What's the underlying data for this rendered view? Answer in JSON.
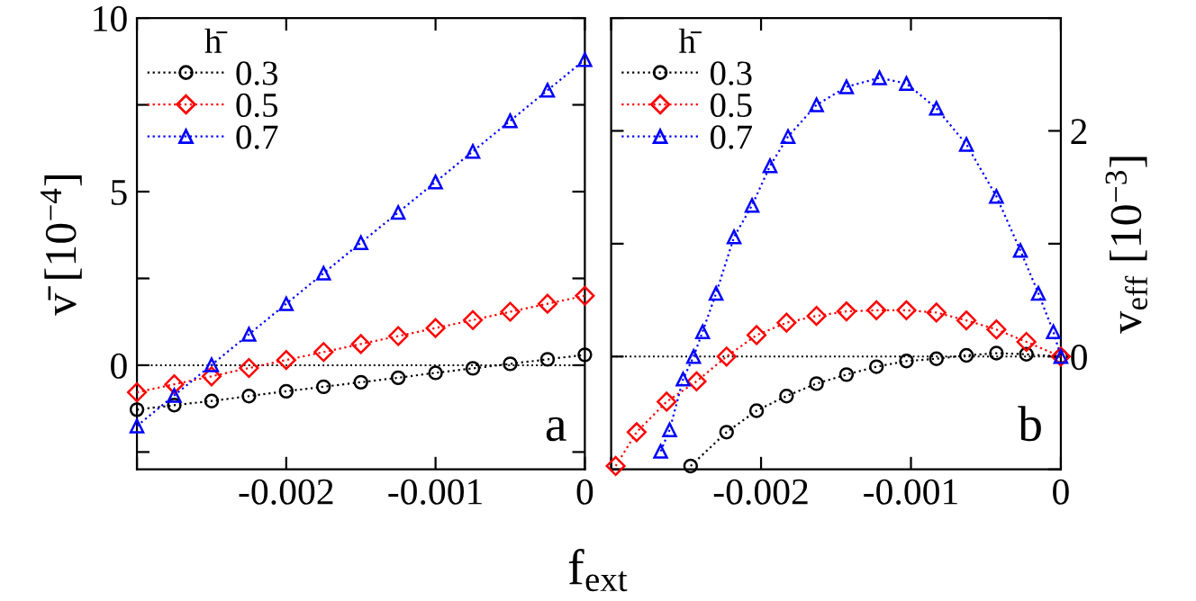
{
  "chart_data": [
    {
      "type": "line",
      "ylabel": "v̄ [10$^{−4}$]",
      "xlabel": "f$_{ext}$",
      "legend_title": "h̄",
      "legend": "top left",
      "grid": false,
      "line_style": "dotted",
      "xlim": [
        -0.003,
        0
      ],
      "ylim": [
        -3,
        10
      ],
      "xticks": [
        {
          "value": -0.003,
          "label": null
        },
        -0.002,
        -0.001,
        0
      ],
      "yticks": [
        {
          "value": -2.5,
          "label": null
        },
        0,
        {
          "value": 2.5,
          "label": null
        },
        5,
        {
          "value": 7.5,
          "label": null
        },
        10
      ],
      "ref_lines": [
        {
          "axis": "y",
          "value": 0,
          "color": "#000000",
          "line_style": "dotted"
        }
      ],
      "annotations": [
        "a"
      ],
      "x": [
        -0.003,
        -0.00275,
        -0.0025,
        -0.00225,
        -0.002,
        -0.00175,
        -0.0015,
        -0.00125,
        -0.001,
        -0.00075,
        -0.0005,
        -0.00025,
        0
      ],
      "series": [
        {
          "name": "0.3",
          "color": "#000000",
          "marker": "circle",
          "values": [
            -1.28,
            -1.15,
            -1.03,
            -0.89,
            -0.75,
            -0.62,
            -0.49,
            -0.36,
            -0.22,
            -0.09,
            0.04,
            0.17,
            0.3
          ]
        },
        {
          "name": "0.5",
          "color": "#ff0000",
          "marker": "diamond",
          "values": [
            -0.78,
            -0.55,
            -0.32,
            -0.08,
            0.15,
            0.38,
            0.61,
            0.84,
            1.07,
            1.3,
            1.54,
            1.77,
            2.0
          ]
        },
        {
          "name": "0.7",
          "color": "#0000ff",
          "marker": "triangle",
          "values": [
            -1.75,
            -0.87,
            0.01,
            0.89,
            1.77,
            2.65,
            3.53,
            4.4,
            5.28,
            6.16,
            7.04,
            7.92,
            8.8
          ]
        }
      ]
    },
    {
      "type": "line",
      "y2label": "v$_{eff}$ [10$^{−3}$]",
      "legend_title": "h̄",
      "legend": "top left",
      "grid": false,
      "line_style": "dotted",
      "xlim": [
        -0.003,
        0
      ],
      "y2lim": [
        -1,
        3
      ],
      "xticks": [
        {
          "value": -0.003,
          "label": null
        },
        -0.002,
        -0.001,
        0
      ],
      "y2ticks": [
        {
          "value": -1,
          "label": null
        },
        0,
        {
          "value": 1,
          "label": null
        },
        2,
        {
          "value": 3,
          "label": null
        }
      ],
      "ref_lines": [
        {
          "axis": "y2",
          "value": 0,
          "color": "#000000",
          "line_style": "dotted"
        }
      ],
      "annotations": [
        "b"
      ],
      "series": [
        {
          "name": "0.3",
          "color": "#000000",
          "marker": "circle",
          "axis": "y2",
          "x": [
            -0.00247,
            -0.00223,
            -0.00203,
            -0.00183,
            -0.00163,
            -0.00143,
            -0.00123,
            -0.00103,
            -0.00083,
            -0.00063,
            -0.00043,
            -0.00023,
            0
          ],
          "values": [
            -0.97,
            -0.67,
            -0.48,
            -0.35,
            -0.24,
            -0.16,
            -0.09,
            -0.04,
            -0.02,
            0.01,
            0.03,
            0.02,
            0
          ]
        },
        {
          "name": "0.5",
          "color": "#ff0000",
          "marker": "diamond",
          "axis": "y2",
          "x": [
            -0.00297,
            -0.00283,
            -0.00263,
            -0.00243,
            -0.00223,
            -0.00203,
            -0.00183,
            -0.00163,
            -0.00143,
            -0.00123,
            -0.00103,
            -0.00083,
            -0.00063,
            -0.00043,
            -0.00023,
            0
          ],
          "values": [
            -0.97,
            -0.67,
            -0.4,
            -0.22,
            0,
            0.19,
            0.3,
            0.36,
            0.4,
            0.41,
            0.41,
            0.39,
            0.32,
            0.24,
            0.13,
            0
          ]
        },
        {
          "name": "0.7",
          "color": "#0000ff",
          "marker": "triangle",
          "axis": "y2",
          "x": [
            -0.00267,
            -0.00261,
            -0.00252,
            -0.00245,
            -0.00239,
            -0.0023,
            -0.00218,
            -0.00206,
            -0.00194,
            -0.00182,
            -0.00163,
            -0.00143,
            -0.00121,
            -0.00103,
            -0.00083,
            -0.00063,
            -0.00043,
            -0.00027,
            -0.00015,
            -5e-05,
            0
          ],
          "values": [
            -0.84,
            -0.65,
            -0.2,
            0,
            0.22,
            0.56,
            1.06,
            1.34,
            1.69,
            1.95,
            2.23,
            2.39,
            2.47,
            2.42,
            2.2,
            1.88,
            1.42,
            0.94,
            0.56,
            0.22,
            0
          ]
        }
      ]
    }
  ]
}
